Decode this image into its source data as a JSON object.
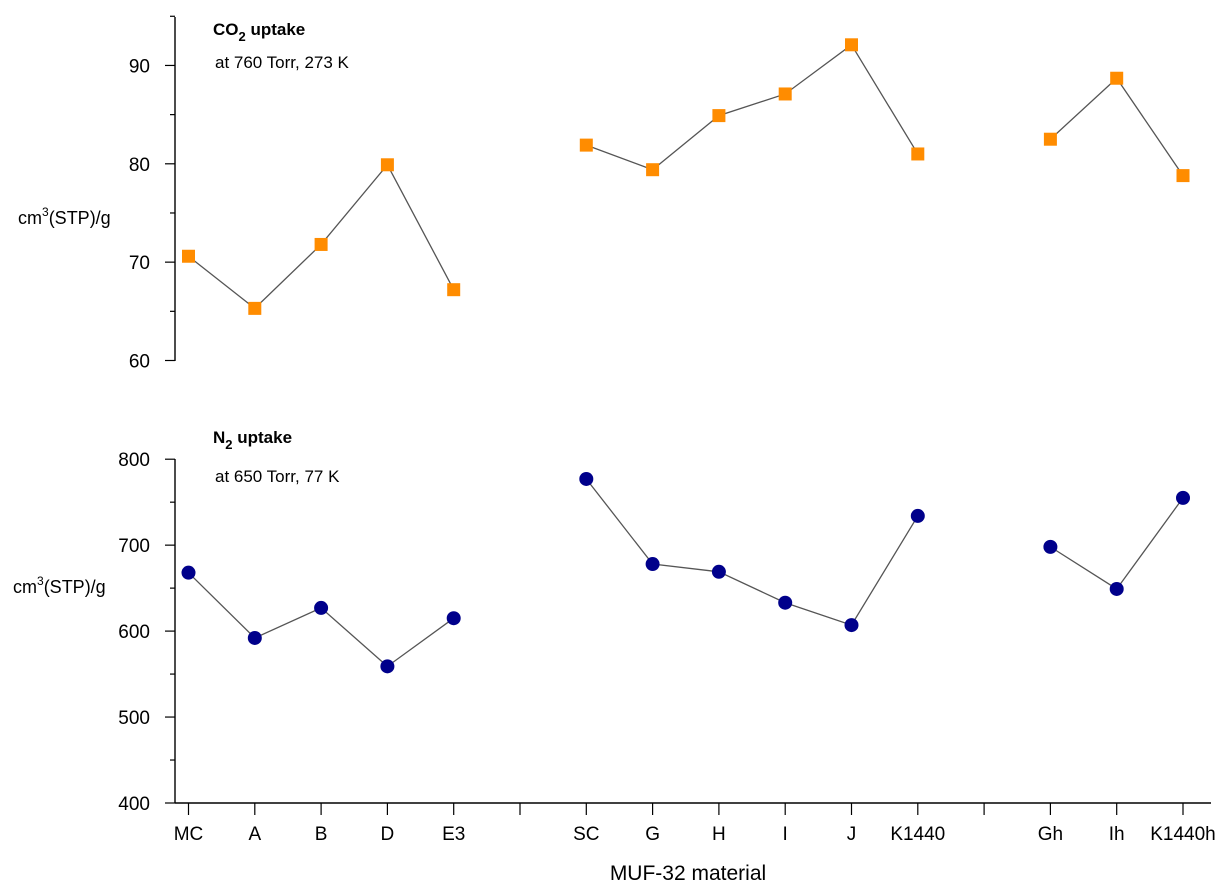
{
  "chart_data": [
    {
      "type": "line",
      "title": "CO2 uptake",
      "title_main": "CO",
      "title_sub": "2",
      "title_rest": " uptake",
      "subtitle": "at 760 Torr, 273 K",
      "ylabel": "cm3(STP)/g",
      "ylabel_pre": "cm",
      "ylabel_sup": "3",
      "ylabel_post": "(STP)/g",
      "ylim": [
        60,
        95
      ],
      "yticks": [
        60,
        70,
        80,
        90
      ],
      "grid": false,
      "marker": "square",
      "color": "#ff8c00",
      "groups": [
        {
          "categories": [
            "MC",
            "A",
            "B",
            "D",
            "E3"
          ],
          "values": [
            70.6,
            65.3,
            71.8,
            79.9,
            67.2
          ]
        },
        {
          "categories": [
            "SC",
            "G",
            "H",
            "I",
            "J",
            "K1440"
          ],
          "values": [
            81.9,
            79.4,
            84.9,
            87.1,
            92.1,
            81.0
          ]
        },
        {
          "categories": [
            "Gh",
            "Ih",
            "K1440h"
          ],
          "values": [
            82.5,
            88.7,
            78.8
          ]
        }
      ]
    },
    {
      "type": "line",
      "title": "N2 uptake",
      "title_main": "N",
      "title_sub": "2",
      "title_rest": " uptake",
      "subtitle": "at 650 Torr, 77 K",
      "ylabel": "cm3(STP)/g",
      "ylabel_pre": "cm",
      "ylabel_sup": "3",
      "ylabel_post": "(STP)/g",
      "ylim": [
        400,
        810
      ],
      "yticks": [
        400,
        500,
        600,
        700,
        800
      ],
      "grid": false,
      "marker": "circle",
      "color": "#00008b",
      "groups": [
        {
          "categories": [
            "MC",
            "A",
            "B",
            "D",
            "E3"
          ],
          "values": [
            668,
            592,
            627,
            559,
            615
          ]
        },
        {
          "categories": [
            "SC",
            "G",
            "H",
            "I",
            "J",
            "K1440"
          ],
          "values": [
            777,
            678,
            669,
            633,
            607,
            734
          ]
        },
        {
          "categories": [
            "Gh",
            "Ih",
            "K1440h"
          ],
          "values": [
            698,
            649,
            755
          ]
        }
      ]
    }
  ],
  "x_axis": {
    "label": "MUF-32 material",
    "tick_labels": [
      "MC",
      "A",
      "B",
      "D",
      "E3",
      "",
      "SC",
      "G",
      "H",
      "I",
      "J",
      "K1440",
      "",
      "Gh",
      "Ih",
      "K1440h"
    ]
  }
}
